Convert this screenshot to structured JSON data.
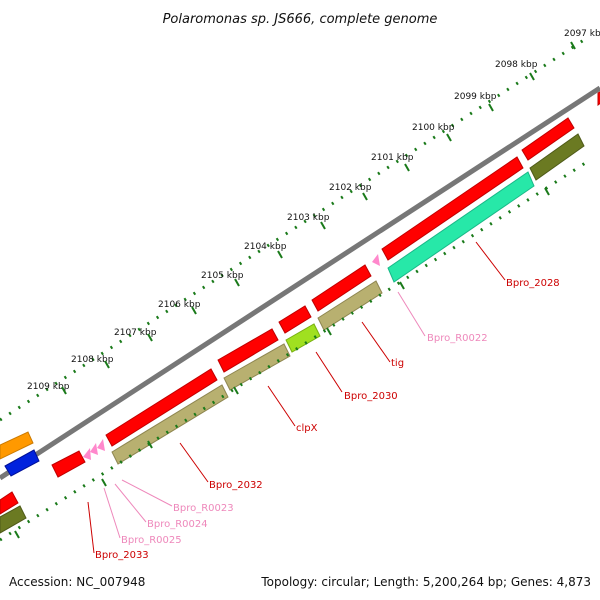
{
  "title": "Polaromonas sp. JS666, complete genome",
  "footer": {
    "accession": "Accession: NC_007948",
    "summary": "Topology: circular; Length: 5,200,264 bp; Genes: 4,873"
  },
  "colors": {
    "backbone": "#777777",
    "dots": "#1a7a1a",
    "gene_red": "#ff0000",
    "gene_red_dark": "#c00000",
    "gene_olive": "#b8b070",
    "gene_olive_dark": "#6b7a22",
    "gene_teal": "#27e8a8",
    "gene_lime": "#a0e020",
    "gene_orange": "#ff9900",
    "gene_blue": "#0022dd",
    "rna_pink": "#ff88cc",
    "label_red": "#cc0000",
    "label_pink": "#ee88bb"
  },
  "scale_ticks": [
    "2097 kbp",
    "2098 kbp",
    "2099 kbp",
    "2100 kbp",
    "2101 kbp",
    "2102 kbp",
    "2103 kbp",
    "2104 kbp",
    "2105 kbp",
    "2106 kbp",
    "2107 kbp",
    "2108 kbp",
    "2109 kbp"
  ],
  "gene_labels": [
    {
      "text": "Bpro_2028",
      "kind": "gene"
    },
    {
      "text": "Bpro_R0022",
      "kind": "rna"
    },
    {
      "text": "tig",
      "kind": "gene"
    },
    {
      "text": "Bpro_2030",
      "kind": "gene"
    },
    {
      "text": "clpX",
      "kind": "gene"
    },
    {
      "text": "Bpro_2032",
      "kind": "gene"
    },
    {
      "text": "Bpro_R0023",
      "kind": "rna"
    },
    {
      "text": "Bpro_R0024",
      "kind": "rna"
    },
    {
      "text": "Bpro_R0025",
      "kind": "rna"
    },
    {
      "text": "Bpro_2033",
      "kind": "gene"
    }
  ]
}
